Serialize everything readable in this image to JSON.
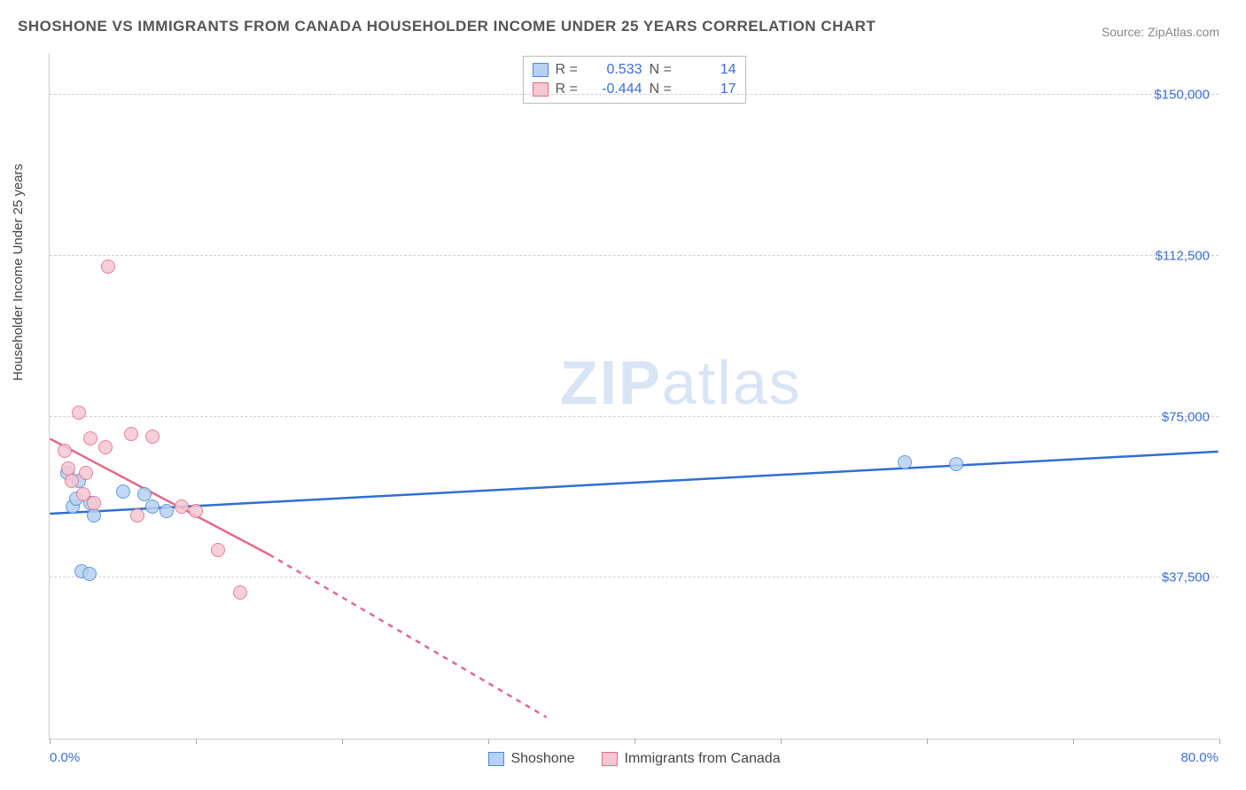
{
  "title": "SHOSHONE VS IMMIGRANTS FROM CANADA HOUSEHOLDER INCOME UNDER 25 YEARS CORRELATION CHART",
  "source_label": "Source: ZipAtlas.com",
  "y_axis_label": "Householder Income Under 25 years",
  "watermark": {
    "bold": "ZIP",
    "rest": "atlas"
  },
  "chart": {
    "type": "scatter",
    "background_color": "#ffffff",
    "grid_color": "#d0d0d0",
    "axis_color": "#cccccc",
    "x_range": [
      0,
      80
    ],
    "y_range": [
      0,
      160000
    ],
    "y_ticks": [
      {
        "value": 37500,
        "label": "$37,500"
      },
      {
        "value": 75000,
        "label": "$75,000"
      },
      {
        "value": 112500,
        "label": "$112,500"
      },
      {
        "value": 150000,
        "label": "$150,000"
      }
    ],
    "x_tick_values": [
      0,
      10,
      20,
      30,
      40,
      50,
      60,
      70,
      80
    ],
    "x_start_label": "0.0%",
    "x_end_label": "80.0%",
    "series": [
      {
        "key": "shoshone",
        "name": "Shoshone",
        "fill": "#b8d1f0",
        "stroke": "#4a8ad4",
        "line_color": "#2f6fd0",
        "R": "0.533",
        "N": "14",
        "points": [
          [
            1.2,
            62000
          ],
          [
            1.6,
            54000
          ],
          [
            1.8,
            56000
          ],
          [
            2.0,
            60000
          ],
          [
            2.2,
            39000
          ],
          [
            2.7,
            38500
          ],
          [
            2.8,
            55000
          ],
          [
            3.0,
            52000
          ],
          [
            5.0,
            57500
          ],
          [
            6.5,
            57000
          ],
          [
            7.0,
            54000
          ],
          [
            8.0,
            53000
          ],
          [
            58.5,
            64500
          ],
          [
            62.0,
            64000
          ]
        ],
        "regression": {
          "y_at_x0": 52500,
          "y_at_x80": 67000
        }
      },
      {
        "key": "canada",
        "name": "Immigrants from Canada",
        "fill": "#f6c7d2",
        "stroke": "#e26a8a",
        "line_color": "#e26a8a",
        "R": "-0.444",
        "N": "17",
        "points": [
          [
            1.0,
            67000
          ],
          [
            1.3,
            63000
          ],
          [
            1.5,
            60000
          ],
          [
            2.0,
            76000
          ],
          [
            2.5,
            62000
          ],
          [
            2.8,
            70000
          ],
          [
            3.8,
            68000
          ],
          [
            3.0,
            55000
          ],
          [
            4.0,
            110000
          ],
          [
            5.6,
            71000
          ],
          [
            7.0,
            70500
          ],
          [
            6.0,
            52000
          ],
          [
            9.0,
            54000
          ],
          [
            10.0,
            53000
          ],
          [
            11.5,
            44000
          ],
          [
            13.0,
            34000
          ],
          [
            2.3,
            57000
          ]
        ],
        "regression_solid": {
          "x1": 0,
          "y1": 70000,
          "x2": 15,
          "y2": 43000
        },
        "regression_dashed": {
          "x1": 15,
          "y1": 43000,
          "x2": 34,
          "y2": 5000
        }
      }
    ]
  },
  "legend_top_labels": {
    "R": "R =",
    "N": "N ="
  }
}
